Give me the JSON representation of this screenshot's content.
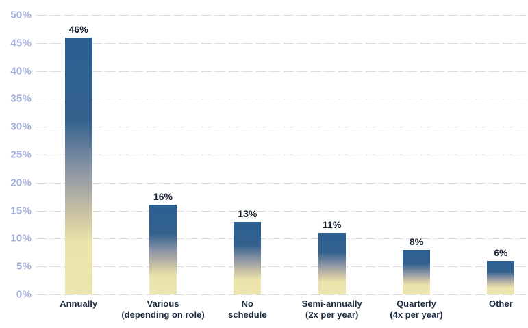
{
  "chart_data": {
    "type": "bar",
    "title": "",
    "xlabel": "",
    "ylabel": "",
    "categories": [
      "Annually",
      "Various (depending on role)",
      "No schedule",
      "Semi-annually (2x per year)",
      "Quarterly (4x per year)",
      "Other"
    ],
    "category_lines": [
      [
        "Annually"
      ],
      [
        "Various",
        "(depending on role)"
      ],
      [
        "No",
        "schedule"
      ],
      [
        "Semi-annually",
        "(2x per year)"
      ],
      [
        "Quarterly",
        "(4x per year)"
      ],
      [
        "Other"
      ]
    ],
    "values": [
      46,
      16,
      13,
      11,
      8,
      6
    ],
    "value_labels": [
      "46%",
      "16%",
      "13%",
      "11%",
      "8%",
      "6%"
    ],
    "ylim": [
      0,
      50
    ],
    "yticks": [
      {
        "value": 0,
        "label": "0%"
      },
      {
        "value": 5,
        "label": "5%"
      },
      {
        "value": 10,
        "label": "10%"
      },
      {
        "value": 15,
        "label": "15%"
      },
      {
        "value": 20,
        "label": "20%"
      },
      {
        "value": 25,
        "label": "25%"
      },
      {
        "value": 30,
        "label": "30%"
      },
      {
        "value": 35,
        "label": "35%"
      },
      {
        "value": 40,
        "label": "40%"
      },
      {
        "value": 45,
        "label": "45%"
      },
      {
        "value": 50,
        "label": "50%"
      }
    ],
    "grid": "horizontal-dashed",
    "legend": "none",
    "bar_gradient_stops": [
      {
        "color": "#2b5f92",
        "pos": 0
      },
      {
        "color": "#33618e",
        "pos": 32
      },
      {
        "color": "#8d96a6",
        "pos": 52
      },
      {
        "color": "#c9c1a4",
        "pos": 68
      },
      {
        "color": "#ece3aa",
        "pos": 80
      },
      {
        "color": "#ede5af",
        "pos": 100
      }
    ],
    "colors": {
      "background": "#ffffff",
      "grid": "#dcdcdc",
      "ytick_text": "#a2aed9",
      "value_text": "#1a2332",
      "category_text": "#1c2a40",
      "bar_top": "#2b5f92",
      "bar_bottom": "#ede5af"
    }
  }
}
